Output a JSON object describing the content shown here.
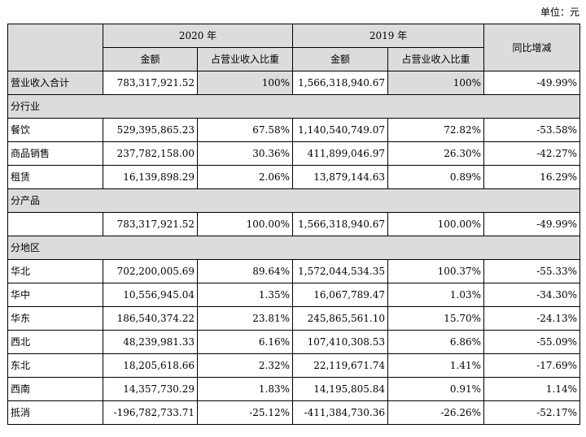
{
  "unit_label": "单位：元",
  "header": {
    "year_2020": "2020 年",
    "year_2019": "2019 年",
    "yoy": "同比增减",
    "amount": "金额",
    "ratio": "占营业收入比重"
  },
  "total": {
    "label": "营业收入合计",
    "a2020": "783,317,921.52",
    "r2020": "100%",
    "a2019": "1,566,318,940.67",
    "r2019": "100%",
    "yoy": "-49.99%"
  },
  "sections": {
    "industry": "分行业",
    "product": "分产品",
    "region": "分地区"
  },
  "industry_rows": [
    {
      "label": "餐饮",
      "a2020": "529,395,865.23",
      "r2020": "67.58%",
      "a2019": "1,140,540,749.07",
      "r2019": "72.82%",
      "yoy": "-53.58%"
    },
    {
      "label": "商品销售",
      "a2020": "237,782,158.00",
      "r2020": "30.36%",
      "a2019": "411,899,046.97",
      "r2019": "26.30%",
      "yoy": "-42.27%"
    },
    {
      "label": "租赁",
      "a2020": "16,139,898.29",
      "r2020": "2.06%",
      "a2019": "13,879,144.63",
      "r2019": "0.89%",
      "yoy": "16.29%"
    }
  ],
  "product_rows": [
    {
      "label": "",
      "a2020": "783,317,921.52",
      "r2020": "100.00%",
      "a2019": "1,566,318,940.67",
      "r2019": "100.00%",
      "yoy": "-49.99%"
    }
  ],
  "region_rows": [
    {
      "label": "华北",
      "a2020": "702,200,005.69",
      "r2020": "89.64%",
      "a2019": "1,572,044,534.35",
      "r2019": "100.37%",
      "yoy": "-55.33%"
    },
    {
      "label": "华中",
      "a2020": "10,556,945.04",
      "r2020": "1.35%",
      "a2019": "16,067,789.47",
      "r2019": "1.03%",
      "yoy": "-34.30%"
    },
    {
      "label": "华东",
      "a2020": "186,540,374.22",
      "r2020": "23.81%",
      "a2019": "245,865,561.10",
      "r2019": "15.70%",
      "yoy": "-24.13%"
    },
    {
      "label": "西北",
      "a2020": "48,239,981.33",
      "r2020": "6.16%",
      "a2019": "107,410,308.53",
      "r2019": "6.86%",
      "yoy": "-55.09%"
    },
    {
      "label": "东北",
      "a2020": "18,205,618.66",
      "r2020": "2.32%",
      "a2019": "22,119,671.74",
      "r2019": "1.41%",
      "yoy": "-17.69%"
    },
    {
      "label": "西南",
      "a2020": "14,357,730.29",
      "r2020": "1.83%",
      "a2019": "14,195,805.84",
      "r2019": "0.91%",
      "yoy": "1.14%"
    },
    {
      "label": "抵消",
      "a2020": "-196,782,733.71",
      "r2020": "-25.12%",
      "a2019": "-411,384,730.36",
      "r2019": "-26.26%",
      "yoy": "-52.17%"
    }
  ]
}
